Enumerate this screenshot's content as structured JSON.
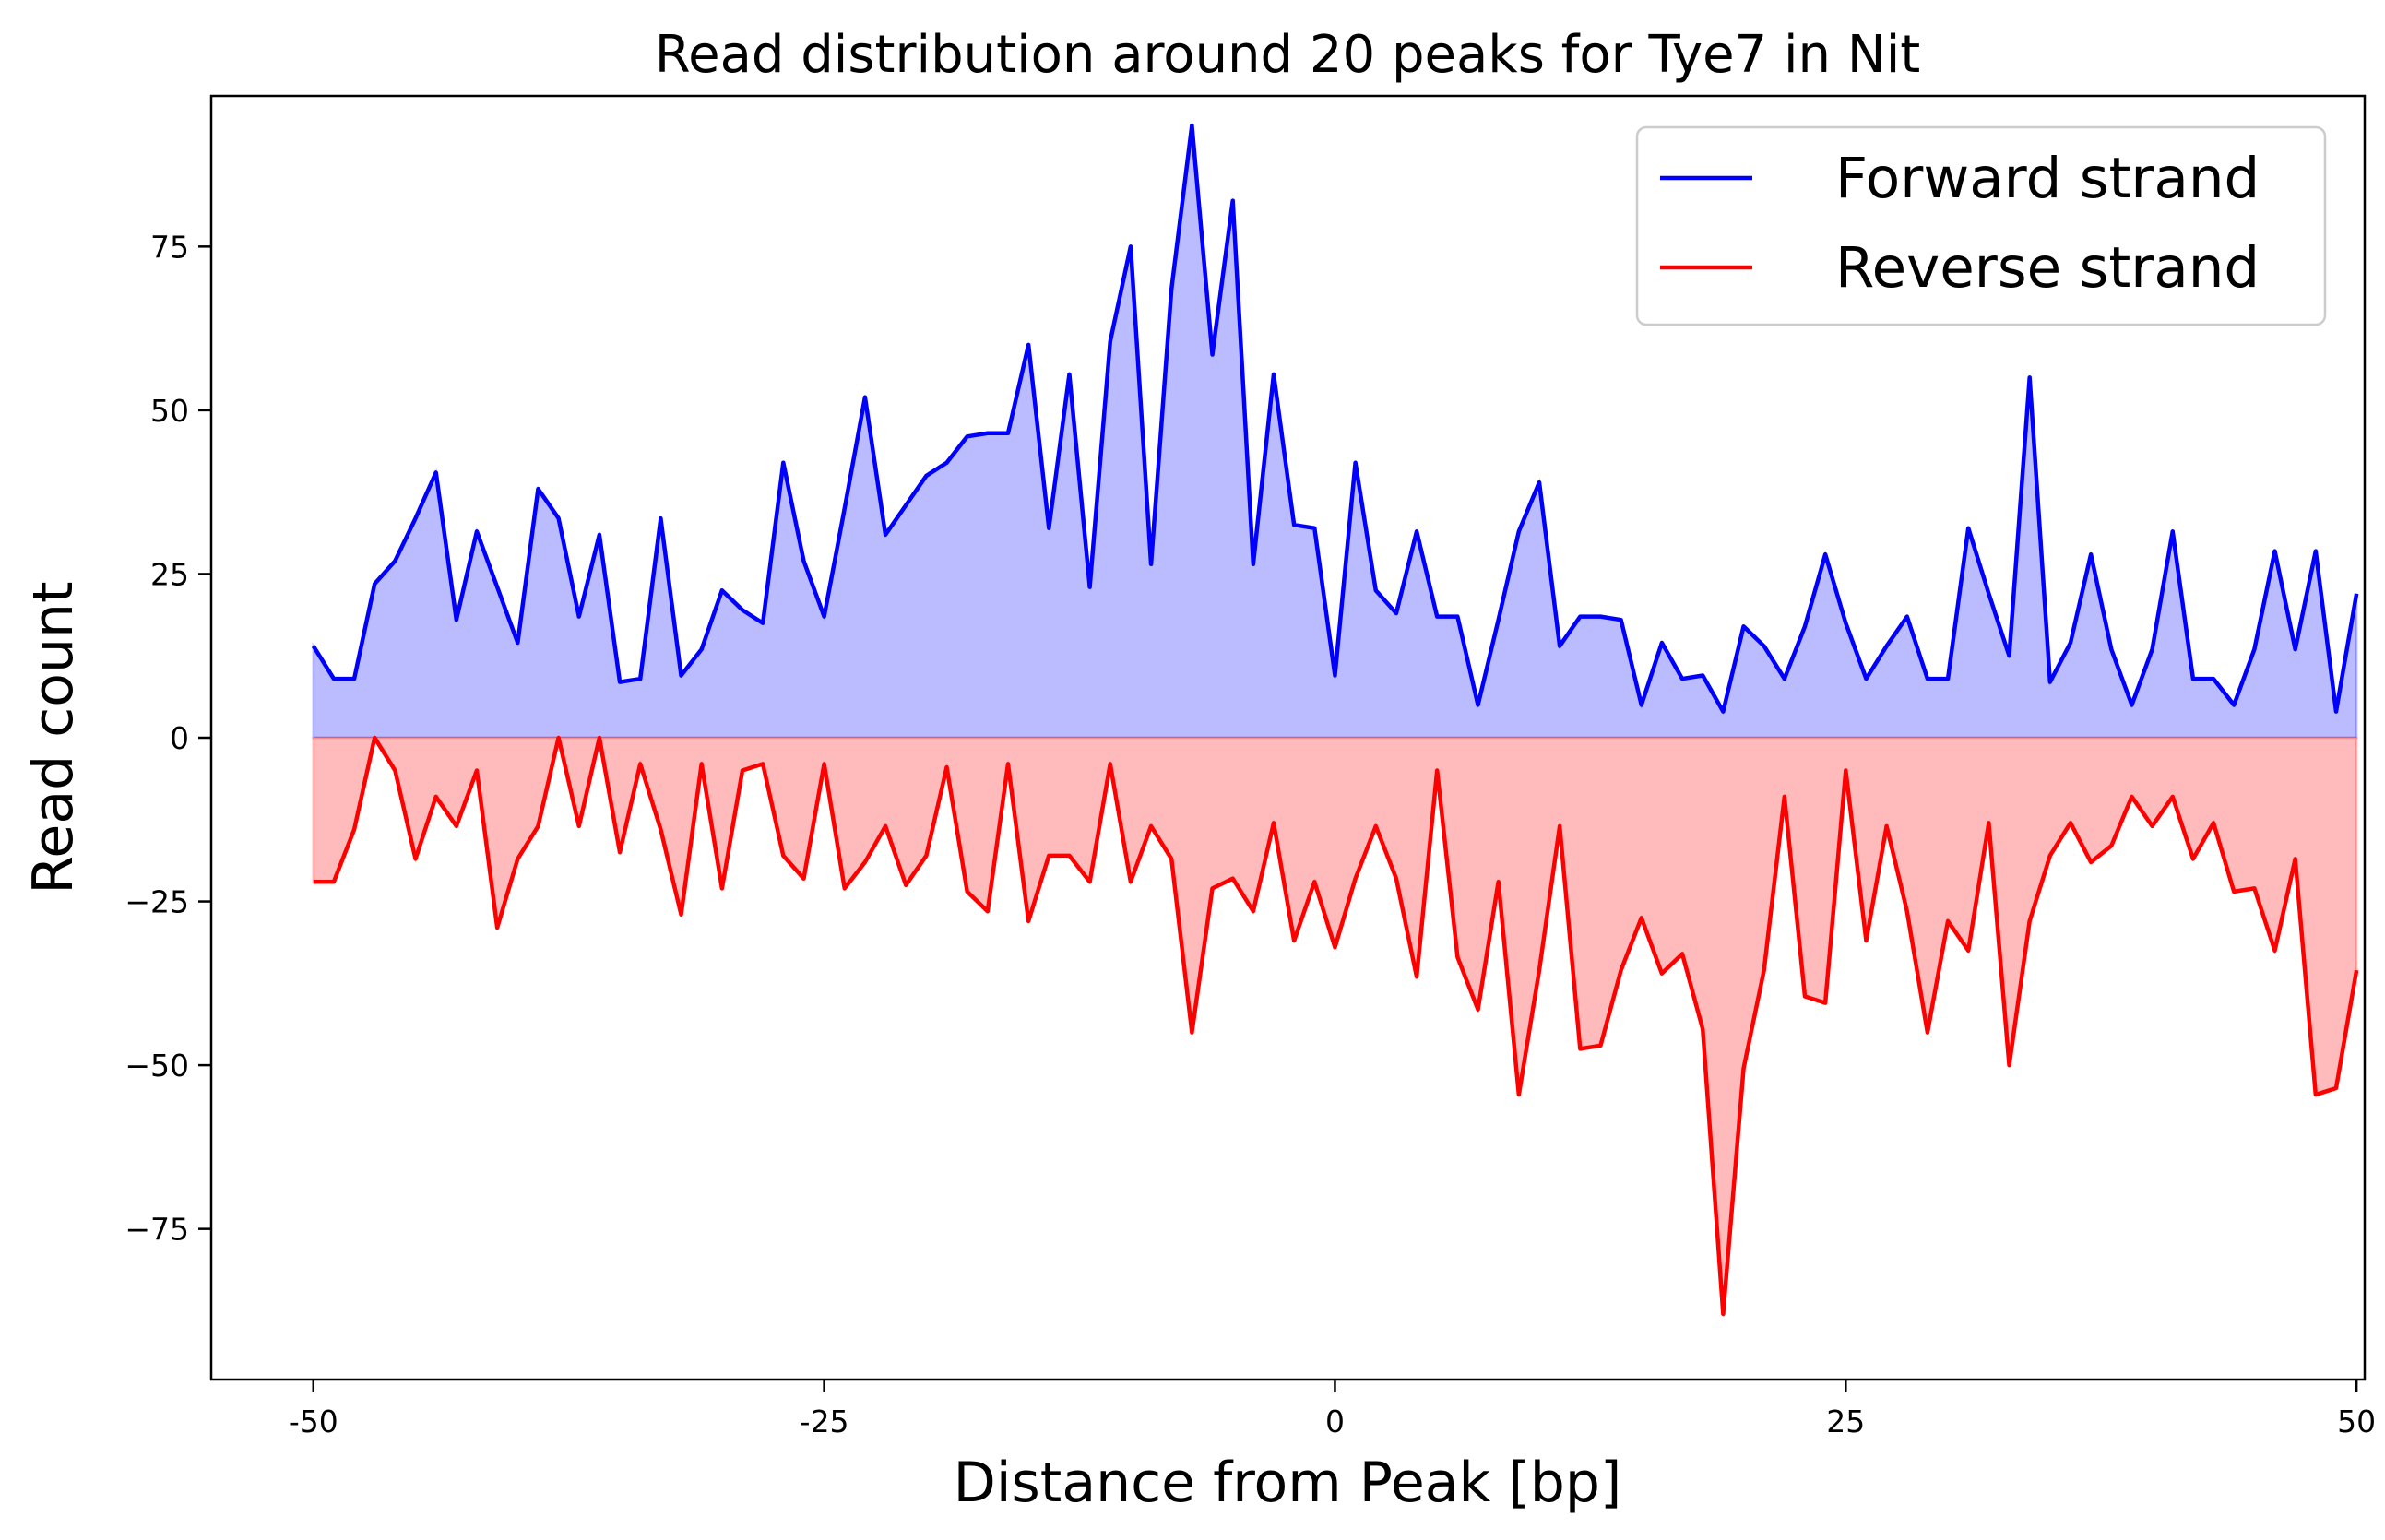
{
  "chart_data": {
    "type": "area",
    "title": "Read distribution around 20 peaks for Tye7 in Nit",
    "xlabel": "Distance from Peak [bp]",
    "ylabel": "Read count",
    "xlim": [
      -55,
      50.4
    ],
    "ylim": [
      -98,
      98
    ],
    "x_ticks": [
      -50,
      -25,
      0,
      25,
      50
    ],
    "x_tick_labels": [
      "-50",
      "-25",
      "0",
      "25",
      "50"
    ],
    "y_ticks": [
      -75,
      -50,
      -25,
      0,
      25,
      50,
      75
    ],
    "y_tick_labels": [
      "−75",
      "−50",
      "−25",
      "0",
      "25",
      "50",
      "75"
    ],
    "grid": false,
    "legend_position": "top-right",
    "x_start": -50,
    "x_step": 1,
    "series": [
      {
        "name": "Forward strand",
        "color": "#0000ff",
        "fill": "#bbbbff",
        "values": [
          14,
          9,
          9,
          23.5,
          27,
          33.5,
          40.5,
          18,
          31.5,
          23,
          14.5,
          38,
          33.5,
          18.5,
          31,
          8.5,
          9,
          33.5,
          9.5,
          13.5,
          22.5,
          19.5,
          17.5,
          42,
          27,
          18.5,
          35,
          52,
          31,
          35.5,
          40,
          42,
          46,
          46.5,
          46.5,
          60,
          32,
          55.5,
          23,
          60.5,
          75,
          26.5,
          68.5,
          93.5,
          58.5,
          82,
          26.5,
          55.5,
          32.5,
          32,
          9.5,
          42,
          22.5,
          19,
          31.5,
          18.5,
          18.5,
          5,
          18,
          31.5,
          39,
          14,
          18.5,
          18.5,
          18,
          5,
          14.5,
          9,
          9.5,
          4,
          17,
          14,
          9,
          17,
          28,
          17.5,
          9,
          14,
          18.5,
          9,
          9,
          32,
          22,
          12.5,
          55,
          8.5,
          14.5,
          28,
          13.5,
          5,
          13.5,
          31.5,
          9,
          9,
          5,
          13.5,
          28.5,
          13.5,
          28.5,
          4,
          22
        ]
      },
      {
        "name": "Reverse strand",
        "color": "#ff0000",
        "fill": "#ffbbbb",
        "values": [
          -22,
          -22,
          -14,
          0,
          -5,
          -18.5,
          -9,
          -13.5,
          -5,
          -29,
          -18.5,
          -13.5,
          0,
          -13.5,
          0,
          -17.5,
          -4,
          -14,
          -27,
          -4,
          -23,
          -5,
          -4,
          -18,
          -21.5,
          -4,
          -23,
          -19,
          -13.5,
          -22.5,
          -18,
          -4.5,
          -23.5,
          -26.5,
          -4,
          -28,
          -18,
          -18,
          -22,
          -4,
          -22,
          -13.5,
          -18.5,
          -45,
          -23,
          -21.5,
          -26.5,
          -13,
          -31,
          -22,
          -32,
          -21.5,
          -13.5,
          -21.5,
          -36.5,
          -5,
          -33.5,
          -41.5,
          -22,
          -54.5,
          -35.5,
          -13.5,
          -47.5,
          -47,
          -35.5,
          -27.5,
          -36,
          -33,
          -44.5,
          -88,
          -50.5,
          -35.5,
          -9,
          -39.5,
          -40.5,
          -5,
          -31,
          -13.5,
          -26.5,
          -45,
          -28,
          -32.5,
          -13,
          -50,
          -28,
          -18,
          -13,
          -19,
          -16.5,
          -9,
          -13.5,
          -9,
          -18.5,
          -13,
          -23.5,
          -23,
          -32.5,
          -18.5,
          -54.5,
          -53.5,
          -35.5
        ]
      }
    ]
  }
}
